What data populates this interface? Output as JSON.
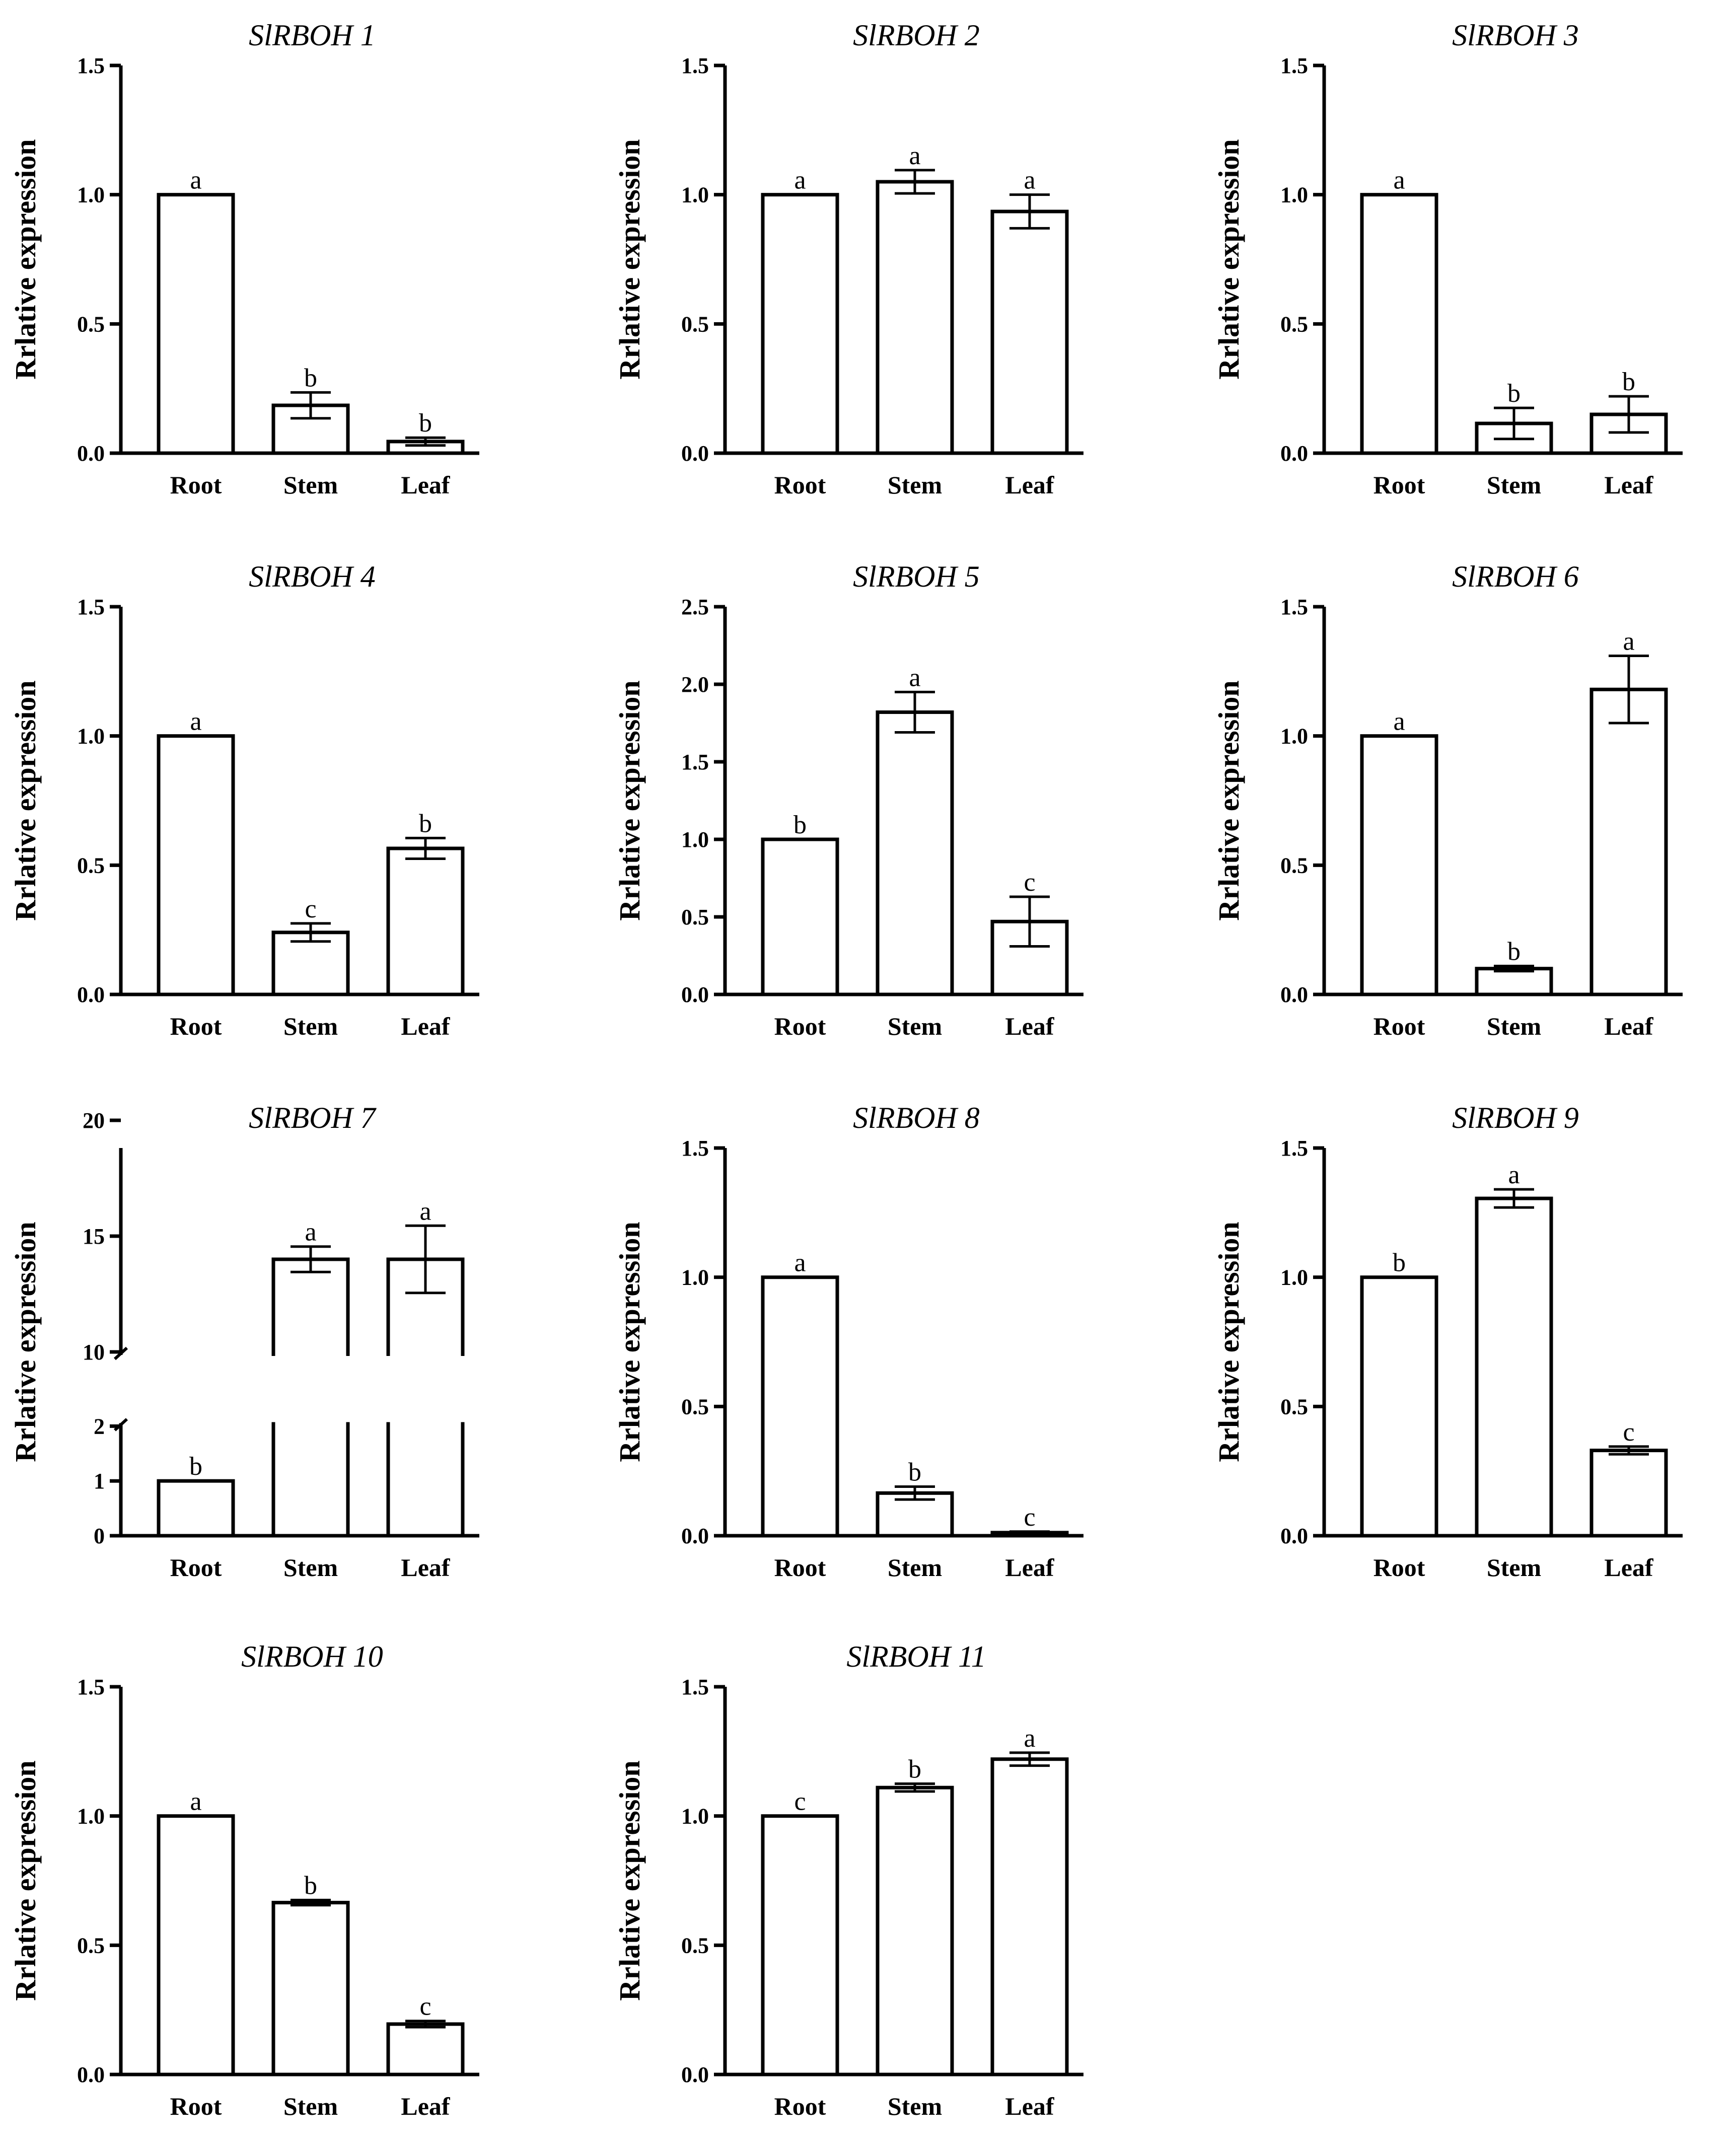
{
  "chart_data": [
    {
      "type": "bar",
      "title": "SlRBOH 1",
      "ylabel": "Rrlative expression",
      "categories": [
        "Root",
        "Stem",
        "Leaf"
      ],
      "values": [
        1.0,
        0.185,
        0.045
      ],
      "errors": [
        0.0,
        0.05,
        0.015
      ],
      "significance": [
        "a",
        "b",
        "b"
      ],
      "ylim": [
        0,
        1.5
      ],
      "yticks": [
        "0.0",
        "0.5",
        "1.0",
        "1.5"
      ]
    },
    {
      "type": "bar",
      "title": "SlRBOH 2",
      "ylabel": "Rrlative expression",
      "categories": [
        "Root",
        "Stem",
        "Leaf"
      ],
      "values": [
        1.0,
        1.05,
        0.935
      ],
      "errors": [
        0.0,
        0.045,
        0.065
      ],
      "significance": [
        "a",
        "a",
        "a"
      ],
      "ylim": [
        0,
        1.5
      ],
      "yticks": [
        "0.0",
        "0.5",
        "1.0",
        "1.5"
      ]
    },
    {
      "type": "bar",
      "title": "SlRBOH 3",
      "ylabel": "Rrlative expression",
      "categories": [
        "Root",
        "Stem",
        "Leaf"
      ],
      "values": [
        1.0,
        0.115,
        0.15
      ],
      "errors": [
        0.0,
        0.06,
        0.07
      ],
      "significance": [
        "a",
        "b",
        "b"
      ],
      "ylim": [
        0,
        1.5
      ],
      "yticks": [
        "0.0",
        "0.5",
        "1.0",
        "1.5"
      ]
    },
    {
      "type": "bar",
      "title": "SlRBOH 4",
      "ylabel": "Rrlative expression",
      "categories": [
        "Root",
        "Stem",
        "Leaf"
      ],
      "values": [
        1.0,
        0.24,
        0.565
      ],
      "errors": [
        0.0,
        0.035,
        0.04
      ],
      "significance": [
        "a",
        "c",
        "b"
      ],
      "ylim": [
        0,
        1.5
      ],
      "yticks": [
        "0.0",
        "0.5",
        "1.0",
        "1.5"
      ]
    },
    {
      "type": "bar",
      "title": "SlRBOH 5",
      "ylabel": "Rrlative expression",
      "categories": [
        "Root",
        "Stem",
        "Leaf"
      ],
      "values": [
        1.0,
        1.82,
        0.47
      ],
      "errors": [
        0.0,
        0.13,
        0.16
      ],
      "significance": [
        "b",
        "a",
        "c"
      ],
      "ylim": [
        0,
        2.5
      ],
      "yticks": [
        "0.0",
        "0.5",
        "1.0",
        "1.5",
        "2.0",
        "2.5"
      ]
    },
    {
      "type": "bar",
      "title": "SlRBOH 6",
      "ylabel": "Rrlative expression",
      "categories": [
        "Root",
        "Stem",
        "Leaf"
      ],
      "values": [
        1.0,
        0.1,
        1.18
      ],
      "errors": [
        0.0,
        0.01,
        0.13
      ],
      "significance": [
        "a",
        "b",
        "a"
      ],
      "ylim": [
        0,
        1.5
      ],
      "yticks": [
        "0.0",
        "0.5",
        "1.0",
        "1.5"
      ]
    },
    {
      "type": "bar",
      "title": "SlRBOH 7",
      "ylabel": "Rrlative expression",
      "categories": [
        "Root",
        "Stem",
        "Leaf"
      ],
      "values": [
        1.0,
        14.0,
        14.0
      ],
      "errors": [
        0.0,
        0.55,
        1.45
      ],
      "significance": [
        "b",
        "a",
        "a"
      ],
      "ylim": [
        0,
        20
      ],
      "broken_axis": [
        2,
        10
      ],
      "yticks": [
        "0",
        "1",
        "2",
        "10",
        "15",
        "20"
      ]
    },
    {
      "type": "bar",
      "title": "SlRBOH 8",
      "ylabel": "Rrlative expression",
      "categories": [
        "Root",
        "Stem",
        "Leaf"
      ],
      "values": [
        1.0,
        0.165,
        0.012
      ],
      "errors": [
        0.0,
        0.025,
        0.004
      ],
      "significance": [
        "a",
        "b",
        "c"
      ],
      "ylim": [
        0,
        1.5
      ],
      "yticks": [
        "0.0",
        "0.5",
        "1.0",
        "1.5"
      ]
    },
    {
      "type": "bar",
      "title": "SlRBOH 9",
      "ylabel": "Rrlative expression",
      "categories": [
        "Root",
        "Stem",
        "Leaf"
      ],
      "values": [
        1.0,
        1.305,
        0.33
      ],
      "errors": [
        0.0,
        0.035,
        0.015
      ],
      "significance": [
        "b",
        "a",
        "c"
      ],
      "ylim": [
        0,
        1.5
      ],
      "yticks": [
        "0.0",
        "0.5",
        "1.0",
        "1.5"
      ]
    },
    {
      "type": "bar",
      "title": "SlRBOH 10",
      "ylabel": "Rrlative expression",
      "categories": [
        "Root",
        "Stem",
        "Leaf"
      ],
      "values": [
        1.0,
        0.665,
        0.195
      ],
      "errors": [
        0.0,
        0.01,
        0.012
      ],
      "significance": [
        "a",
        "b",
        "c"
      ],
      "ylim": [
        0,
        1.5
      ],
      "yticks": [
        "0.0",
        "0.5",
        "1.0",
        "1.5"
      ]
    },
    {
      "type": "bar",
      "title": "SlRBOH 11",
      "ylabel": "Rrlative expression",
      "categories": [
        "Root",
        "Stem",
        "Leaf"
      ],
      "values": [
        1.0,
        1.11,
        1.22
      ],
      "errors": [
        0.0,
        0.015,
        0.025
      ],
      "significance": [
        "c",
        "b",
        "a"
      ],
      "ylim": [
        0,
        1.5
      ],
      "yticks": [
        "0.0",
        "0.5",
        "1.0",
        "1.5"
      ]
    }
  ]
}
